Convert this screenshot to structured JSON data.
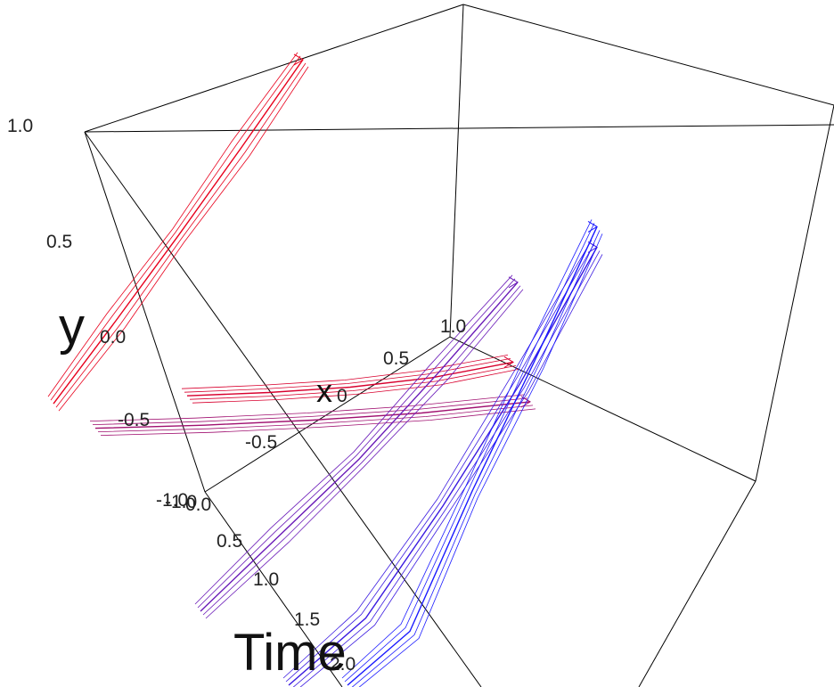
{
  "chart_data": {
    "type": "line",
    "projection": "3d",
    "axes": {
      "y": {
        "label": "y",
        "ticks": [
          "1.0",
          "0.5",
          "0.0",
          "-0.5",
          "-1.0"
        ],
        "range": [
          -1.0,
          1.0
        ]
      },
      "x": {
        "label": "x",
        "ticks": [
          "1.0",
          "0.5",
          "0",
          "-0.5",
          "-1.0"
        ],
        "range": [
          -1.0,
          1.0
        ]
      },
      "time": {
        "label": "Time",
        "ticks": [
          "0.0",
          "0.5",
          "1.0",
          "1.5",
          "2.0"
        ],
        "range": [
          0.0,
          2.0
        ]
      }
    },
    "grid": false,
    "legend": "none",
    "color_scale": {
      "start": "#e8001c",
      "mid": "#7a12a8",
      "end": "#1a1aff"
    },
    "series": [
      {
        "color": "#e8001c",
        "x": [
          -1.0,
          -1.0,
          -1.0,
          -1.0,
          -1.0
        ],
        "time": [
          2.0,
          1.5,
          1.0,
          0.5,
          0.0
        ],
        "y": [
          0.03,
          0.25,
          0.48,
          0.72,
          0.97
        ]
      },
      {
        "color": "#d8002e",
        "x": [
          -0.6,
          -0.3,
          0.0,
          0.3,
          0.6
        ],
        "time": [
          1.4,
          1.1,
          0.8,
          0.5,
          0.2
        ],
        "y": [
          0.0,
          0.02,
          0.05,
          0.1,
          0.18
        ]
      },
      {
        "color": "#a01070",
        "x": [
          -0.8,
          -0.4,
          0.0,
          0.4,
          0.8
        ],
        "time": [
          1.9,
          1.5,
          1.1,
          0.7,
          0.3
        ],
        "y": [
          -0.05,
          -0.03,
          0.0,
          0.04,
          0.1
        ]
      },
      {
        "color": "#6a1ab8",
        "x": [
          0.0,
          0.2,
          0.4,
          0.6,
          0.8
        ],
        "time": [
          2.0,
          1.6,
          1.2,
          0.8,
          0.4
        ],
        "y": [
          -0.6,
          -0.3,
          0.0,
          0.35,
          0.72
        ]
      },
      {
        "color": "#3a1ae0",
        "x": [
          0.6,
          0.7,
          0.8,
          0.9,
          1.0
        ],
        "time": [
          2.0,
          1.5,
          1.0,
          0.5,
          0.0
        ],
        "y": [
          -0.92,
          -0.55,
          -0.15,
          0.3,
          0.82
        ]
      },
      {
        "color": "#1a1aff",
        "x": [
          1.0,
          1.0,
          1.0,
          1.0,
          1.0
        ],
        "time": [
          2.0,
          1.5,
          1.0,
          0.5,
          0.0
        ],
        "y": [
          -0.95,
          -0.5,
          0.0,
          0.45,
          0.92
        ]
      }
    ]
  }
}
